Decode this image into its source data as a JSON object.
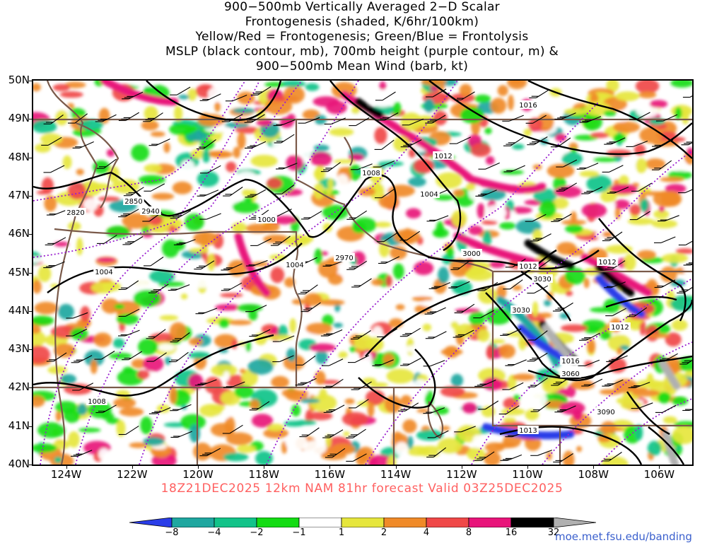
{
  "title": {
    "line1": "900−500mb Vertically Averaged 2−D Scalar",
    "line2": "Frontogenesis (shaded, K/6hr/100km)",
    "line3": "Yellow/Red = Frontogenesis;  Green/Blue = Frontolysis",
    "line4": "MSLP (black contour, mb), 700mb height (purple contour, m) &",
    "line5": "900−500mb Mean Wind (barb, kt)"
  },
  "forecast_line": "18Z21DEC2025 12km NAM 81hr forecast Valid 03Z25DEC2025",
  "credit": "moe.met.fsu.edu/banding",
  "map": {
    "extent": {
      "lon_min": -125,
      "lon_max": -105,
      "lat_min": 40,
      "lat_max": 50
    },
    "lat_labels": [
      "50N",
      "49N",
      "48N",
      "47N",
      "46N",
      "45N",
      "44N",
      "43N",
      "42N",
      "41N",
      "40N"
    ],
    "lon_labels": [
      "124W",
      "122W",
      "120W",
      "118W",
      "116W",
      "114W",
      "112W",
      "110W",
      "108W",
      "106W"
    ],
    "mslp_labels": [
      "1016",
      "1012",
      "1008",
      "1004",
      "1000",
      "1004",
      "1004",
      "1008",
      "1012",
      "1012",
      "1012",
      "1016",
      "1013"
    ],
    "height_labels": [
      "2820",
      "2850",
      "2940",
      "2970",
      "3000",
      "3030",
      "3030",
      "3060",
      "3090"
    ]
  },
  "colorbar": {
    "labels": [
      "−8",
      "−4",
      "−2",
      "−1",
      "1",
      "2",
      "4",
      "8",
      "16",
      "32"
    ],
    "colors": [
      "#2a3de8",
      "#1fa7a0",
      "#12c389",
      "#14dc14",
      "#ffffff",
      "#e6e63c",
      "#f08a28",
      "#f04848",
      "#e8147a",
      "#000000",
      "#b0b0b0"
    ]
  }
}
